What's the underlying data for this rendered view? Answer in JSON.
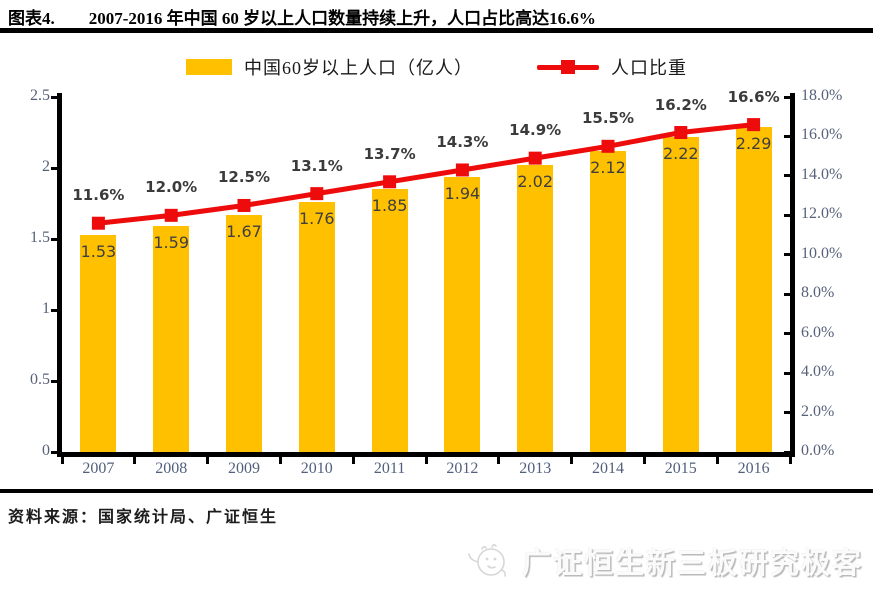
{
  "header": {
    "label": "图表4.",
    "title": "2007-2016 年中国 60 岁以上人口数量持续上升，人口占比高达16.6%"
  },
  "legend": {
    "bar_label": "中国60岁以上人口（亿人）",
    "line_label": "人口比重"
  },
  "colors": {
    "bar": "#FFC000",
    "line": "#EE0B0B",
    "axis": "#000000",
    "tick_label": "#56617a",
    "data_label": "#3f3f3f"
  },
  "chart_data": {
    "type": "bar",
    "title": "2007-2016 年中国 60 岁以上人口数量持续上升，人口占比高达16.6%",
    "categories": [
      "2007",
      "2008",
      "2009",
      "2010",
      "2011",
      "2012",
      "2013",
      "2014",
      "2015",
      "2016"
    ],
    "series": [
      {
        "name": "中国60岁以上人口（亿人）",
        "type": "bar",
        "axis": "left",
        "values": [
          1.53,
          1.59,
          1.67,
          1.76,
          1.85,
          1.94,
          2.02,
          2.12,
          2.22,
          2.29
        ],
        "labels": [
          "1.53",
          "1.59",
          "1.67",
          "1.76",
          "1.85",
          "1.94",
          "2.02",
          "2.12",
          "2.22",
          "2.29"
        ]
      },
      {
        "name": "人口比重",
        "type": "line",
        "axis": "right",
        "values": [
          11.6,
          12.0,
          12.5,
          13.1,
          13.7,
          14.3,
          14.9,
          15.5,
          16.2,
          16.6
        ],
        "labels": [
          "11.6%",
          "12.0%",
          "12.5%",
          "13.1%",
          "13.7%",
          "14.3%",
          "14.9%",
          "15.5%",
          "16.2%",
          "16.6%"
        ]
      }
    ],
    "left_axis": {
      "min": 0,
      "max": 2.5,
      "ticks": [
        "0",
        "0.5",
        "1",
        "1.5",
        "2",
        "2.5"
      ]
    },
    "right_axis": {
      "min": 0,
      "max": 18,
      "ticks": [
        "0.0%",
        "2.0%",
        "4.0%",
        "6.0%",
        "8.0%",
        "10.0%",
        "12.0%",
        "14.0%",
        "16.0%",
        "18.0%"
      ]
    },
    "grid": false,
    "legend_position": "top"
  },
  "source": {
    "text": "资料来源：国家统计局、广证恒生"
  },
  "watermark": {
    "text": "广证恒生新三板研究极客"
  }
}
